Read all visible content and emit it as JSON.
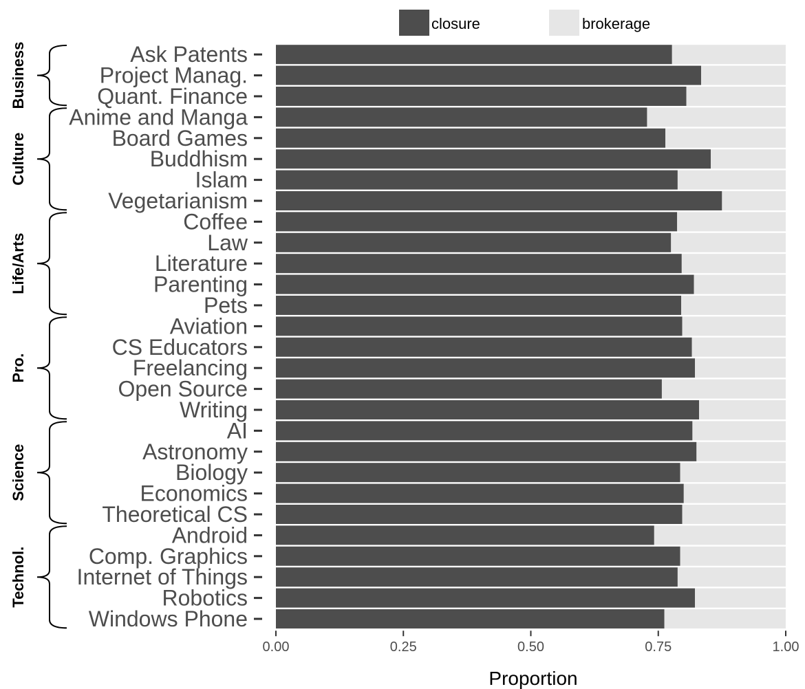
{
  "chart_data": {
    "type": "bar",
    "orientation": "horizontal",
    "stacked": true,
    "xlabel": "Proportion",
    "ylabel": "",
    "xlim": [
      0,
      1
    ],
    "x_ticks": [
      "0.00",
      "0.25",
      "0.50",
      "0.75",
      "1.00"
    ],
    "x_tick_values": [
      0,
      0.25,
      0.5,
      0.75,
      1.0
    ],
    "legend": {
      "placement": "top",
      "entries": [
        "closure",
        "brokerage"
      ]
    },
    "colors": {
      "closure": "#4d4d4d",
      "brokerage": "#e6e6e6"
    },
    "categories": [
      "Ask Patents",
      "Project Manag.",
      "Quant. Finance",
      "Anime and Manga",
      "Board Games",
      "Buddhism",
      "Islam",
      "Vegetarianism",
      "Coffee",
      "Law",
      "Literature",
      "Parenting",
      "Pets",
      "Aviation",
      "CS Educators",
      "Freelancing",
      "Open Source",
      "Writing",
      "AI",
      "Astronomy",
      "Biology",
      "Economics",
      "Theoretical CS",
      "Android",
      "Comp. Graphics",
      "Internet of Things",
      "Robotics",
      "Windows Phone"
    ],
    "series": [
      {
        "name": "closure",
        "values": [
          0.777,
          0.834,
          0.805,
          0.728,
          0.764,
          0.853,
          0.788,
          0.875,
          0.787,
          0.775,
          0.796,
          0.82,
          0.795,
          0.797,
          0.816,
          0.822,
          0.757,
          0.83,
          0.817,
          0.825,
          0.793,
          0.8,
          0.797,
          0.742,
          0.793,
          0.788,
          0.822,
          0.762
        ]
      },
      {
        "name": "brokerage",
        "values": [
          0.223,
          0.166,
          0.195,
          0.272,
          0.236,
          0.147,
          0.212,
          0.125,
          0.213,
          0.225,
          0.204,
          0.18,
          0.205,
          0.203,
          0.184,
          0.178,
          0.243,
          0.17,
          0.183,
          0.175,
          0.207,
          0.2,
          0.203,
          0.258,
          0.207,
          0.212,
          0.178,
          0.238
        ]
      }
    ],
    "groups": [
      {
        "name": "Business",
        "start": 0,
        "end": 2
      },
      {
        "name": "Culture",
        "start": 3,
        "end": 7
      },
      {
        "name": "Life/Arts",
        "start": 8,
        "end": 12
      },
      {
        "name": "Pro.",
        "start": 13,
        "end": 17
      },
      {
        "name": "Science",
        "start": 18,
        "end": 22
      },
      {
        "name": "Technol.",
        "start": 23,
        "end": 27
      }
    ],
    "grid": false
  }
}
